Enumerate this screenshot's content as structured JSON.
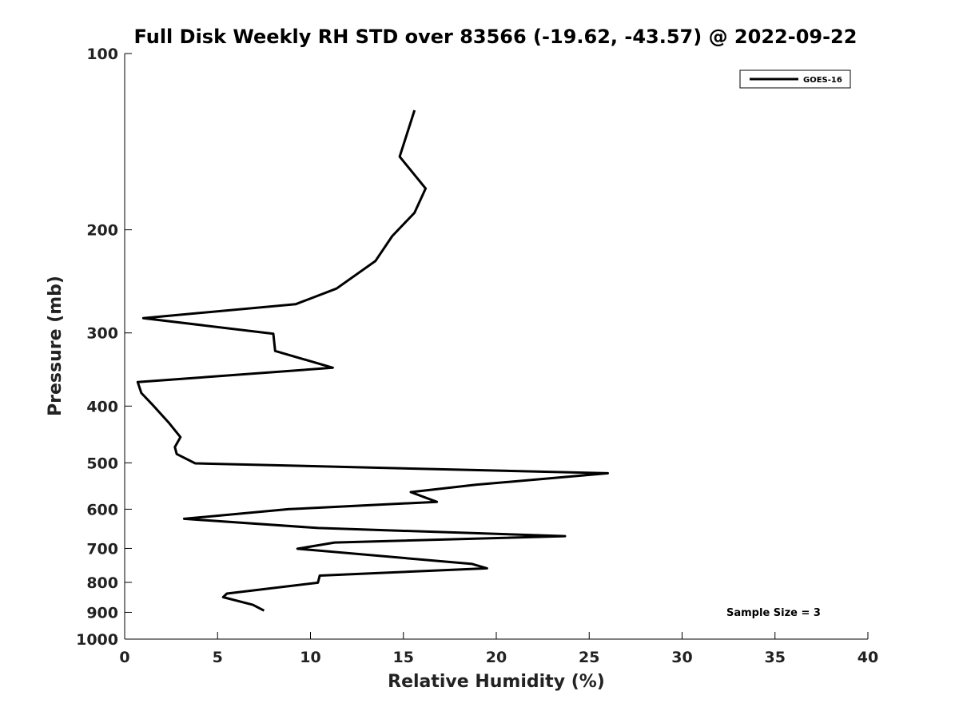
{
  "chart_data": {
    "type": "line",
    "title": "Full Disk Weekly RH STD over 83566 (-19.62, -43.57) @ 2022-09-22",
    "xlabel": "Relative Humidity (%)",
    "ylabel": "Pressure (mb)",
    "xlim": [
      0,
      40
    ],
    "ylim": [
      100,
      1000
    ],
    "yscale": "log",
    "y_inverted": true,
    "xticks": [
      0,
      5,
      10,
      15,
      20,
      25,
      30,
      35,
      40
    ],
    "xtick_labels": [
      "0",
      "5",
      "10",
      "15",
      "20",
      "25",
      "30",
      "35",
      "40"
    ],
    "yticks": [
      100,
      200,
      300,
      400,
      500,
      600,
      700,
      800,
      900,
      1000
    ],
    "ytick_labels": [
      "100",
      "200",
      "300",
      "400",
      "500",
      "600",
      "700",
      "800",
      "900",
      "1000"
    ],
    "legend": {
      "placement": "top-right",
      "entries": [
        "GOES-16"
      ]
    },
    "annotation": "Sample Size = 3",
    "series": [
      {
        "name": "GOES-16",
        "color": "#000000",
        "points": [
          [
            15.6,
            125
          ],
          [
            14.8,
            150
          ],
          [
            16.2,
            170
          ],
          [
            15.6,
            187
          ],
          [
            14.4,
            205
          ],
          [
            13.5,
            226
          ],
          [
            11.4,
            252
          ],
          [
            9.2,
            268
          ],
          [
            1.0,
            283
          ],
          [
            8.0,
            301
          ],
          [
            8.1,
            322
          ],
          [
            11.2,
            344
          ],
          [
            0.7,
            364
          ],
          [
            0.9,
            380
          ],
          [
            1.5,
            398
          ],
          [
            2.4,
            428
          ],
          [
            3.0,
            452
          ],
          [
            2.7,
            470
          ],
          [
            2.8,
            483
          ],
          [
            3.8,
            501
          ],
          [
            26.0,
            521
          ],
          [
            18.9,
            545
          ],
          [
            15.4,
            561
          ],
          [
            16.8,
            583
          ],
          [
            8.8,
            600
          ],
          [
            3.2,
            623
          ],
          [
            10.4,
            646
          ],
          [
            23.7,
            667
          ],
          [
            11.3,
            684
          ],
          [
            9.3,
            701
          ],
          [
            18.7,
            744
          ],
          [
            19.5,
            757
          ],
          [
            10.5,
            779
          ],
          [
            10.4,
            801
          ],
          [
            5.5,
            836
          ],
          [
            5.3,
            848
          ],
          [
            6.9,
            874
          ],
          [
            7.5,
            894
          ]
        ]
      }
    ]
  }
}
